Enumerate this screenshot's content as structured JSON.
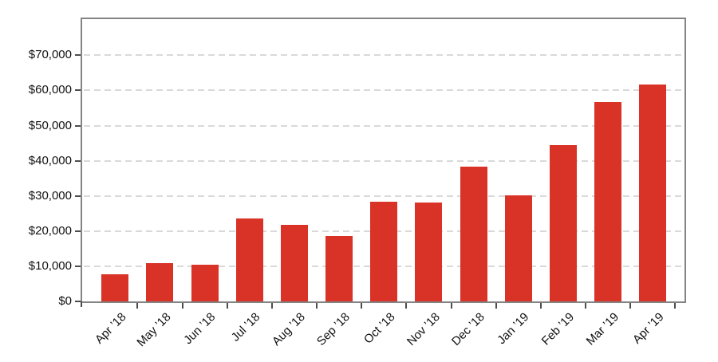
{
  "chart_data": {
    "type": "bar",
    "title": "",
    "xlabel": "",
    "ylabel": "",
    "categories": [
      "Apr ’18",
      "May ’18",
      "Jun ’18",
      "Jul ’18",
      "Aug ’18",
      "Sep ’18",
      "Oct ’18",
      "Nov ’18",
      "Dec ’18",
      "Jan ’19",
      "Feb ’19",
      "Mar ’19",
      "Apr ’19"
    ],
    "values": [
      7700,
      10800,
      10400,
      23600,
      21800,
      18700,
      28400,
      28200,
      38300,
      30100,
      44500,
      56600,
      61700
    ],
    "ylim": [
      0,
      80300
    ],
    "y_ticks": [
      0,
      10000,
      20000,
      30000,
      40000,
      50000,
      60000,
      70000
    ],
    "y_tick_labels": [
      "$0",
      "$10,000",
      "$20,000",
      "$30,000",
      "$40,000",
      "$50,000",
      "$60,000",
      "$70,000"
    ],
    "grid": "horizontal-dashed",
    "legend": "none",
    "colors": {
      "bar": "#d93227",
      "frame": "#848484",
      "gridline": "#d9d9d9",
      "tick": "#4d4d4d",
      "label": "#111111"
    }
  }
}
